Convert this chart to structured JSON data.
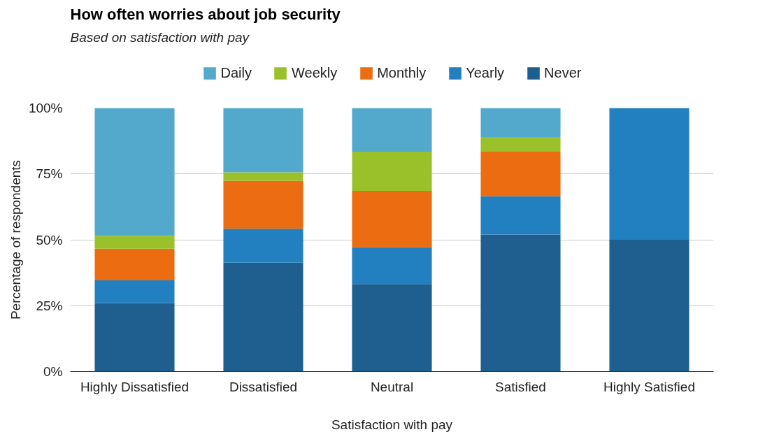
{
  "chart_data": {
    "type": "bar",
    "title": "How often worries about job security",
    "subtitle": "Based on satisfaction with pay",
    "xlabel": "Satisfaction with pay",
    "ylabel": "Percentage of respondents",
    "categories": [
      "Highly Dissatisfied",
      "Dissatisfied",
      "Neutral",
      "Satisfied",
      "Highly Satisfied"
    ],
    "stacked": true,
    "series": [
      {
        "name": "Never",
        "color": "#1f5f8f",
        "values": [
          26,
          41.3,
          33.2,
          52,
          50
        ]
      },
      {
        "name": "Yearly",
        "color": "#2280c1",
        "values": [
          8.6,
          12.9,
          14,
          14.5,
          50
        ]
      },
      {
        "name": "Monthly",
        "color": "#ec6c12",
        "values": [
          12,
          18.2,
          21.4,
          16.9,
          0
        ]
      },
      {
        "name": "Weekly",
        "color": "#9bc12a",
        "values": [
          4.9,
          3.2,
          14.8,
          5.6,
          0
        ]
      },
      {
        "name": "Daily",
        "color": "#52a9cb",
        "values": [
          48.5,
          24.4,
          16.6,
          11,
          0
        ]
      }
    ],
    "ylim": [
      0,
      100
    ],
    "yticks": [
      {
        "value": 0,
        "label": "0%"
      },
      {
        "value": 25,
        "label": "25%"
      },
      {
        "value": 50,
        "label": "50%"
      },
      {
        "value": 75,
        "label": "75%"
      },
      {
        "value": 100,
        "label": "100%"
      }
    ],
    "grid": "y",
    "legend": "top"
  }
}
